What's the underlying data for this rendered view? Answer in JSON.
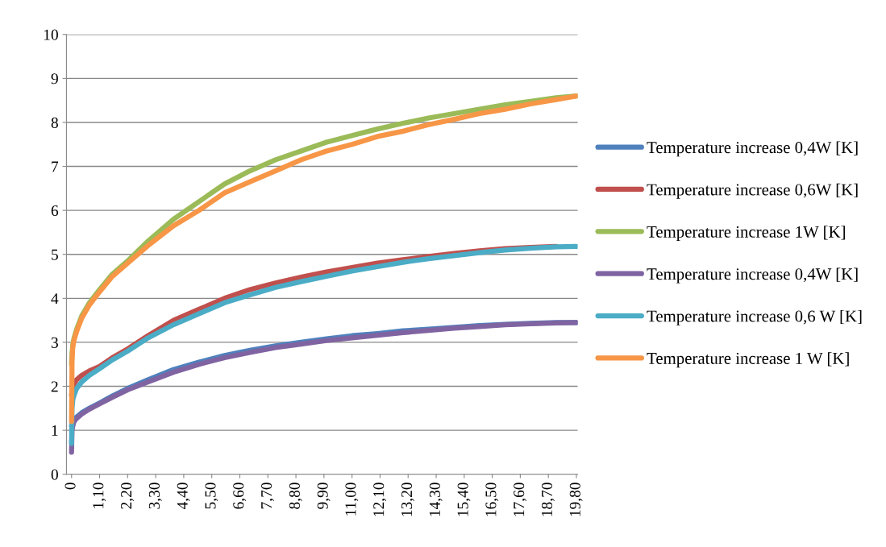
{
  "chart_data": {
    "type": "line",
    "x": [
      0,
      0.02,
      0.05,
      0.1,
      0.2,
      0.4,
      0.7,
      1.1,
      1.6,
      2.2,
      3.0,
      4.0,
      5.0,
      6.0,
      7.0,
      8.0,
      9.0,
      10,
      11,
      12,
      13,
      14,
      15,
      16,
      17,
      18,
      19,
      19.8
    ],
    "series": [
      {
        "name": "Temperature increase 0,4W [K]",
        "color": "#4f81bd",
        "values": [
          1.1,
          1.15,
          1.2,
          1.25,
          1.3,
          1.4,
          1.5,
          1.62,
          1.78,
          1.95,
          2.15,
          2.38,
          2.55,
          2.7,
          2.82,
          2.92,
          3.0,
          3.08,
          3.15,
          3.2,
          3.26,
          3.3,
          3.34,
          3.38,
          3.41,
          3.43,
          3.45,
          3.45
        ]
      },
      {
        "name": "Temperature increase 0,6W [K]",
        "color": "#c0504d",
        "values": [
          1.8,
          1.9,
          2.0,
          2.05,
          2.15,
          2.25,
          2.35,
          2.45,
          2.65,
          2.85,
          3.15,
          3.5,
          3.75,
          4.0,
          4.2,
          4.35,
          4.48,
          4.6,
          4.7,
          4.8,
          4.88,
          4.95,
          5.02,
          5.08,
          5.13,
          5.16,
          5.18,
          null
        ]
      },
      {
        "name": "Temperature increase 1W [K]",
        "color": "#9bbb59",
        "values": [
          2.5,
          2.75,
          2.95,
          3.1,
          3.3,
          3.6,
          3.9,
          4.2,
          4.55,
          4.85,
          5.3,
          5.8,
          6.2,
          6.6,
          6.9,
          7.15,
          7.35,
          7.55,
          7.7,
          7.85,
          7.98,
          8.1,
          8.2,
          8.3,
          8.4,
          8.48,
          8.56,
          8.6
        ]
      },
      {
        "name": "Temperature increase 0,4W [K]",
        "color": "#8064a2",
        "values": [
          0.5,
          1.0,
          1.1,
          1.2,
          1.27,
          1.37,
          1.48,
          1.6,
          1.75,
          1.92,
          2.1,
          2.32,
          2.5,
          2.65,
          2.77,
          2.88,
          2.96,
          3.04,
          3.1,
          3.16,
          3.22,
          3.27,
          3.32,
          3.36,
          3.4,
          3.42,
          3.44,
          3.45
        ]
      },
      {
        "name": "Temperature increase 0,6 W [K]",
        "color": "#4bacc6",
        "values": [
          0.7,
          1.5,
          1.7,
          1.8,
          1.95,
          2.1,
          2.25,
          2.4,
          2.6,
          2.8,
          3.1,
          3.4,
          3.65,
          3.9,
          4.08,
          4.25,
          4.38,
          4.5,
          4.62,
          4.72,
          4.82,
          4.9,
          4.97,
          5.04,
          5.1,
          5.14,
          5.17,
          5.18
        ]
      },
      {
        "name": "Temperature increase 1 W [K]",
        "color": "#f79646",
        "values": [
          1.2,
          2.6,
          2.9,
          3.05,
          3.25,
          3.55,
          3.85,
          4.15,
          4.5,
          4.8,
          5.2,
          5.65,
          6.0,
          6.4,
          6.65,
          6.9,
          7.15,
          7.35,
          7.5,
          7.68,
          7.8,
          7.95,
          8.07,
          8.2,
          8.3,
          8.42,
          8.52,
          8.6
        ]
      }
    ],
    "xlim": [
      -0.2,
      19.85
    ],
    "xticks": [
      0,
      {
        "value": 1.1,
        "label": "1,10"
      },
      {
        "value": 2.2,
        "label": "2,20"
      },
      {
        "value": 3.3,
        "label": "3,30"
      },
      {
        "value": 4.4,
        "label": "4,40"
      },
      {
        "value": 5.5,
        "label": "5,50"
      },
      {
        "value": 6.6,
        "label": "6,60"
      },
      {
        "value": 7.7,
        "label": "7,70"
      },
      {
        "value": 8.8,
        "label": "8,80"
      },
      {
        "value": 9.9,
        "label": "9,90"
      },
      {
        "value": 11,
        "label": "11,00"
      },
      {
        "value": 12.1,
        "label": "12,10"
      },
      {
        "value": 13.2,
        "label": "13,20"
      },
      {
        "value": 14.3,
        "label": "14,30"
      },
      {
        "value": 15.4,
        "label": "15,40"
      },
      {
        "value": 16.5,
        "label": "16,50"
      },
      {
        "value": 17.6,
        "label": "17,60"
      },
      {
        "value": 18.7,
        "label": "18,70"
      },
      {
        "value": 19.8,
        "label": "19,80"
      }
    ],
    "ylim": [
      0,
      10
    ],
    "yticks": [
      0,
      1,
      2,
      3,
      4,
      5,
      6,
      7,
      8,
      9,
      10
    ],
    "grid": "y",
    "legend": "right",
    "marker": "none",
    "line_style": "solid"
  }
}
